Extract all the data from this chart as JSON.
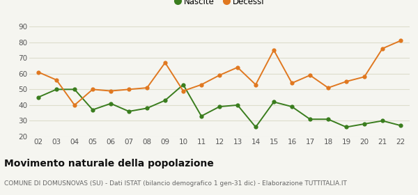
{
  "years": [
    "02",
    "03",
    "04",
    "05",
    "06",
    "07",
    "08",
    "09",
    "10",
    "11",
    "12",
    "13",
    "14",
    "15",
    "16",
    "17",
    "18",
    "19",
    "20",
    "21",
    "22"
  ],
  "nascite": [
    45,
    50,
    50,
    37,
    41,
    36,
    38,
    43,
    53,
    33,
    39,
    40,
    26,
    42,
    39,
    31,
    31,
    26,
    28,
    30,
    27
  ],
  "decessi": [
    61,
    56,
    40,
    50,
    49,
    50,
    51,
    67,
    49,
    53,
    59,
    64,
    53,
    75,
    54,
    59,
    51,
    55,
    58,
    76,
    81
  ],
  "nascite_color": "#3a7d1e",
  "decessi_color": "#e07820",
  "background_color": "#f5f5f0",
  "grid_color": "#ddddcc",
  "title": "Movimento naturale della popolazione",
  "subtitle": "COMUNE DI DOMUSNOVAS (SU) - Dati ISTAT (bilancio demografico 1 gen-31 dic) - Elaborazione TUTTITALIA.IT",
  "legend_nascite": "Nascite",
  "legend_decessi": "Decessi",
  "ylim": [
    20,
    92
  ],
  "yticks": [
    20,
    30,
    40,
    50,
    60,
    70,
    80,
    90
  ],
  "title_fontsize": 10,
  "subtitle_fontsize": 6.5,
  "legend_fontsize": 8.5,
  "tick_fontsize": 7.5
}
